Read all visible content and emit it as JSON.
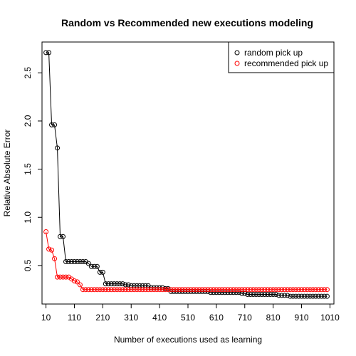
{
  "chart_data": {
    "type": "line",
    "title": "Random vs Recommended new executions modeling",
    "xlabel": "Number of executions used as learning",
    "ylabel": "Relative Absolute Error",
    "xlim": [
      -4,
      1024
    ],
    "ylim": [
      0.1,
      2.82
    ],
    "x_ticks": [
      10,
      110,
      210,
      310,
      410,
      510,
      610,
      710,
      810,
      910,
      1010
    ],
    "y_ticks": [
      0.5,
      1.0,
      1.5,
      2.0,
      2.5
    ],
    "x_tick_labels": [
      "10",
      "110",
      "210",
      "310",
      "410",
      "510",
      "610",
      "710",
      "810",
      "910",
      "1010"
    ],
    "y_tick_labels": [
      "0.5",
      "1.0",
      "1.5",
      "2.0",
      "2.5"
    ],
    "legend_position": "top-right",
    "marker": "open-circle",
    "series": [
      {
        "name": "random pick up",
        "color": "#000000",
        "points": [
          [
            10,
            2.71
          ],
          [
            20,
            2.71
          ],
          [
            30,
            1.96
          ],
          [
            40,
            1.96
          ],
          [
            50,
            1.72
          ],
          [
            60,
            0.8
          ],
          [
            70,
            0.8
          ],
          [
            80,
            0.54
          ],
          [
            90,
            0.54
          ],
          [
            100,
            0.54
          ],
          [
            110,
            0.54
          ],
          [
            120,
            0.54
          ],
          [
            130,
            0.54
          ],
          [
            140,
            0.54
          ],
          [
            150,
            0.54
          ],
          [
            160,
            0.52
          ],
          [
            170,
            0.49
          ],
          [
            180,
            0.49
          ],
          [
            190,
            0.49
          ],
          [
            200,
            0.43
          ],
          [
            210,
            0.43
          ],
          [
            220,
            0.31
          ],
          [
            230,
            0.31
          ],
          [
            240,
            0.31
          ],
          [
            250,
            0.31
          ],
          [
            260,
            0.31
          ],
          [
            270,
            0.31
          ],
          [
            280,
            0.31
          ],
          [
            290,
            0.3
          ],
          [
            300,
            0.3
          ],
          [
            310,
            0.29
          ],
          [
            320,
            0.29
          ],
          [
            330,
            0.29
          ],
          [
            340,
            0.29
          ],
          [
            350,
            0.29
          ],
          [
            360,
            0.29
          ],
          [
            370,
            0.29
          ],
          [
            380,
            0.27
          ],
          [
            390,
            0.27
          ],
          [
            400,
            0.27
          ],
          [
            410,
            0.27
          ],
          [
            420,
            0.27
          ],
          [
            430,
            0.26
          ],
          [
            440,
            0.26
          ],
          [
            450,
            0.23
          ],
          [
            460,
            0.23
          ],
          [
            470,
            0.23
          ],
          [
            480,
            0.23
          ],
          [
            490,
            0.23
          ],
          [
            500,
            0.23
          ],
          [
            510,
            0.23
          ],
          [
            520,
            0.23
          ],
          [
            530,
            0.23
          ],
          [
            540,
            0.23
          ],
          [
            550,
            0.23
          ],
          [
            560,
            0.23
          ],
          [
            570,
            0.23
          ],
          [
            580,
            0.23
          ],
          [
            590,
            0.22
          ],
          [
            600,
            0.22
          ],
          [
            610,
            0.22
          ],
          [
            620,
            0.22
          ],
          [
            630,
            0.22
          ],
          [
            640,
            0.22
          ],
          [
            650,
            0.22
          ],
          [
            660,
            0.22
          ],
          [
            670,
            0.22
          ],
          [
            680,
            0.22
          ],
          [
            690,
            0.22
          ],
          [
            700,
            0.21
          ],
          [
            710,
            0.21
          ],
          [
            720,
            0.2
          ],
          [
            730,
            0.2
          ],
          [
            740,
            0.2
          ],
          [
            750,
            0.2
          ],
          [
            760,
            0.2
          ],
          [
            770,
            0.2
          ],
          [
            780,
            0.2
          ],
          [
            790,
            0.2
          ],
          [
            800,
            0.2
          ],
          [
            810,
            0.2
          ],
          [
            820,
            0.2
          ],
          [
            830,
            0.19
          ],
          [
            840,
            0.19
          ],
          [
            850,
            0.19
          ],
          [
            860,
            0.19
          ],
          [
            870,
            0.18
          ],
          [
            880,
            0.18
          ],
          [
            890,
            0.18
          ],
          [
            900,
            0.18
          ],
          [
            910,
            0.18
          ],
          [
            920,
            0.18
          ],
          [
            930,
            0.18
          ],
          [
            940,
            0.18
          ],
          [
            950,
            0.18
          ],
          [
            960,
            0.18
          ],
          [
            970,
            0.18
          ],
          [
            980,
            0.18
          ],
          [
            990,
            0.18
          ],
          [
            1000,
            0.18
          ]
        ]
      },
      {
        "name": "recommended pick up",
        "color": "#ff0000",
        "points": [
          [
            10,
            0.85
          ],
          [
            20,
            0.67
          ],
          [
            30,
            0.66
          ],
          [
            40,
            0.57
          ],
          [
            50,
            0.38
          ],
          [
            60,
            0.38
          ],
          [
            70,
            0.38
          ],
          [
            80,
            0.38
          ],
          [
            90,
            0.38
          ],
          [
            100,
            0.36
          ],
          [
            110,
            0.34
          ],
          [
            120,
            0.33
          ],
          [
            130,
            0.3
          ],
          [
            140,
            0.25
          ],
          [
            150,
            0.25
          ],
          [
            160,
            0.25
          ],
          [
            170,
            0.25
          ],
          [
            180,
            0.25
          ],
          [
            190,
            0.25
          ],
          [
            200,
            0.25
          ],
          [
            210,
            0.25
          ],
          [
            220,
            0.25
          ],
          [
            230,
            0.25
          ],
          [
            240,
            0.25
          ],
          [
            250,
            0.25
          ],
          [
            260,
            0.25
          ],
          [
            270,
            0.25
          ],
          [
            280,
            0.25
          ],
          [
            290,
            0.25
          ],
          [
            300,
            0.25
          ],
          [
            310,
            0.25
          ],
          [
            320,
            0.25
          ],
          [
            330,
            0.25
          ],
          [
            340,
            0.25
          ],
          [
            350,
            0.25
          ],
          [
            360,
            0.25
          ],
          [
            370,
            0.25
          ],
          [
            380,
            0.25
          ],
          [
            390,
            0.25
          ],
          [
            400,
            0.25
          ],
          [
            410,
            0.25
          ],
          [
            420,
            0.25
          ],
          [
            430,
            0.25
          ],
          [
            440,
            0.25
          ],
          [
            450,
            0.25
          ],
          [
            460,
            0.25
          ],
          [
            470,
            0.25
          ],
          [
            480,
            0.25
          ],
          [
            490,
            0.25
          ],
          [
            500,
            0.25
          ],
          [
            510,
            0.25
          ],
          [
            520,
            0.25
          ],
          [
            530,
            0.25
          ],
          [
            540,
            0.25
          ],
          [
            550,
            0.25
          ],
          [
            560,
            0.25
          ],
          [
            570,
            0.25
          ],
          [
            580,
            0.25
          ],
          [
            590,
            0.25
          ],
          [
            600,
            0.25
          ],
          [
            610,
            0.25
          ],
          [
            620,
            0.25
          ],
          [
            630,
            0.25
          ],
          [
            640,
            0.25
          ],
          [
            650,
            0.25
          ],
          [
            660,
            0.25
          ],
          [
            670,
            0.25
          ],
          [
            680,
            0.25
          ],
          [
            690,
            0.25
          ],
          [
            700,
            0.25
          ],
          [
            710,
            0.25
          ],
          [
            720,
            0.25
          ],
          [
            730,
            0.25
          ],
          [
            740,
            0.25
          ],
          [
            750,
            0.25
          ],
          [
            760,
            0.25
          ],
          [
            770,
            0.25
          ],
          [
            780,
            0.25
          ],
          [
            790,
            0.25
          ],
          [
            800,
            0.25
          ],
          [
            810,
            0.25
          ],
          [
            820,
            0.25
          ],
          [
            830,
            0.25
          ],
          [
            840,
            0.25
          ],
          [
            850,
            0.25
          ],
          [
            860,
            0.25
          ],
          [
            870,
            0.25
          ],
          [
            880,
            0.25
          ],
          [
            890,
            0.25
          ],
          [
            900,
            0.25
          ],
          [
            910,
            0.25
          ],
          [
            920,
            0.25
          ],
          [
            930,
            0.25
          ],
          [
            940,
            0.25
          ],
          [
            950,
            0.25
          ],
          [
            960,
            0.25
          ],
          [
            970,
            0.25
          ],
          [
            980,
            0.25
          ],
          [
            990,
            0.25
          ],
          [
            1000,
            0.25
          ]
        ]
      }
    ]
  }
}
